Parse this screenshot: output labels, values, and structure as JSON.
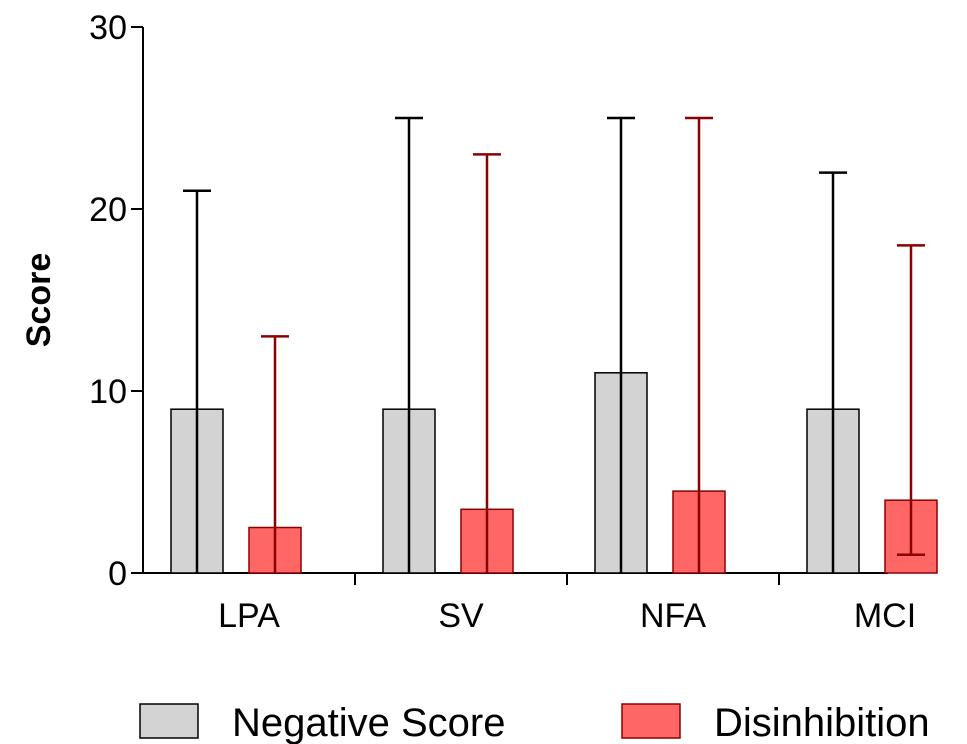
{
  "chart_data": {
    "type": "bar",
    "xlabel": "",
    "ylabel": "Score",
    "ylim": [
      0,
      30
    ],
    "yticks": [
      0,
      10,
      20,
      30
    ],
    "categories": [
      "LPA",
      "SV",
      "NFA",
      "MCI"
    ],
    "grid": false,
    "legend_position": "bottom",
    "series": [
      {
        "name": "Negative Score",
        "color": "#d3d3d3",
        "error_color": "#000000",
        "values": [
          9,
          9,
          11,
          9
        ],
        "error_low": [
          0,
          0,
          0,
          0
        ],
        "error_high": [
          21,
          25,
          25,
          22
        ]
      },
      {
        "name": "Disinhibition",
        "color": "#ff6666",
        "error_color": "#8b0000",
        "values": [
          2.5,
          3.5,
          4.5,
          4
        ],
        "error_low": [
          0,
          0,
          0,
          1
        ],
        "error_high": [
          13,
          23,
          25,
          18
        ]
      }
    ]
  }
}
